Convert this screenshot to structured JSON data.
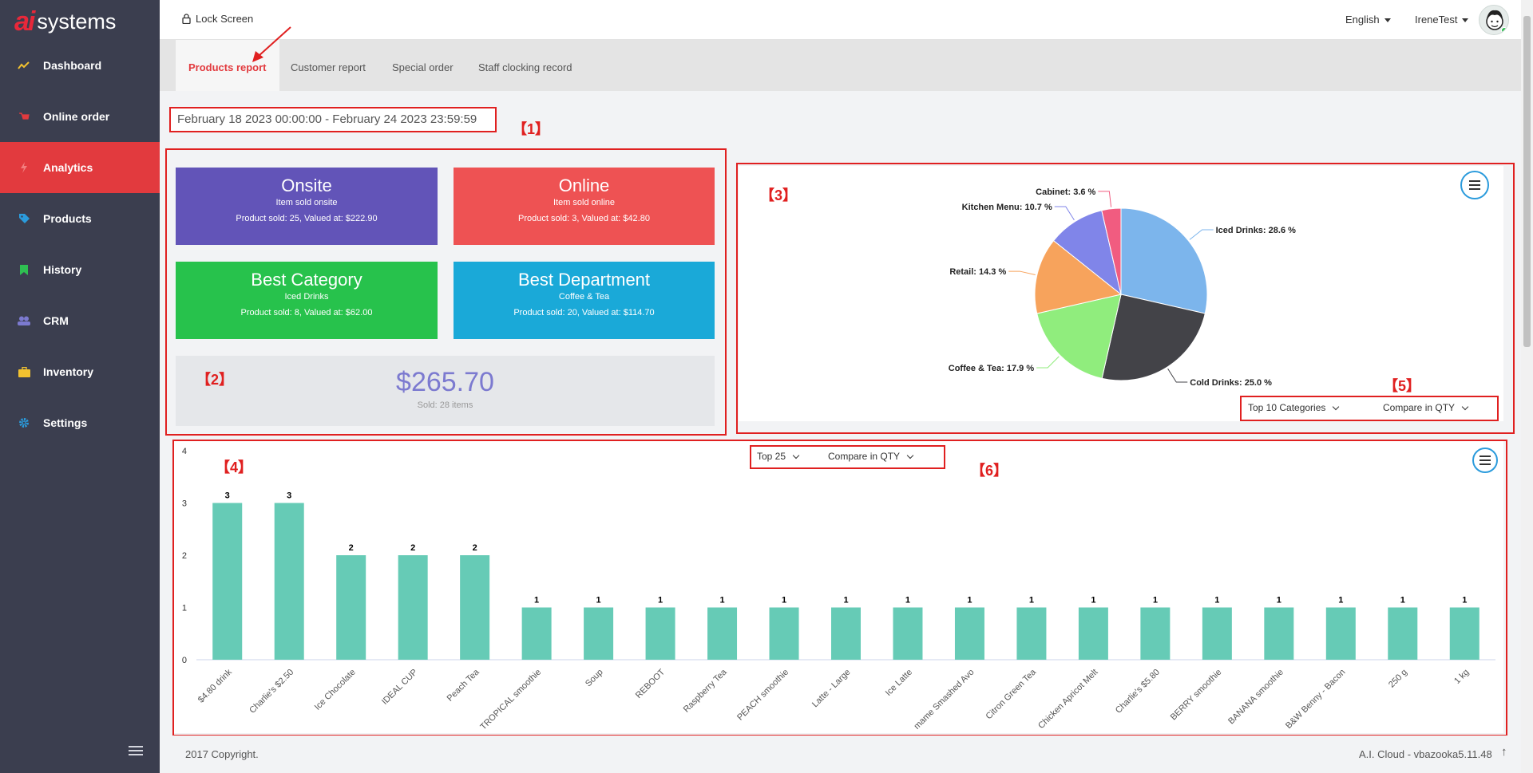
{
  "sidebar": {
    "logo_mark": "ai",
    "logo_text": "systems",
    "items": [
      {
        "label": "Dashboard",
        "icon": "chart-line-icon",
        "color": "#f2c230"
      },
      {
        "label": "Online order",
        "icon": "cart-icon",
        "color": "#e23a3e"
      },
      {
        "label": "Analytics",
        "icon": "bolt-icon",
        "color": "#f27e7e",
        "active": true
      },
      {
        "label": "Products",
        "icon": "tag-icon",
        "color": "#2b9bdc"
      },
      {
        "label": "History",
        "icon": "bookmark-icon",
        "color": "#2fbf52"
      },
      {
        "label": "CRM",
        "icon": "users-icon",
        "color": "#7c7ad0"
      },
      {
        "label": "Inventory",
        "icon": "briefcase-icon",
        "color": "#f2c230"
      },
      {
        "label": "Settings",
        "icon": "gear-icon",
        "color": "#2b9bdc"
      }
    ]
  },
  "topbar": {
    "lock_label": "Lock Screen",
    "language": "English",
    "user": "IreneTest"
  },
  "tabs": [
    "Products report",
    "Customer report",
    "Special order",
    "Staff clocking record"
  ],
  "date_range": "February 18 2023 00:00:00 - February 24 2023 23:59:59",
  "annotations": [
    "【1】",
    "【2】",
    "【3】",
    "【4】",
    "【5】",
    "【6】"
  ],
  "cards": [
    {
      "title": "Onsite",
      "subtitle": "Item sold onsite",
      "value": "Product sold: 25, Valued at: $222.90",
      "color": "#6254b8"
    },
    {
      "title": "Online",
      "subtitle": "Item sold online",
      "value": "Product sold: 3, Valued at: $42.80",
      "color": "#ee5253"
    },
    {
      "title": "Best Category",
      "subtitle": "Iced Drinks",
      "value": "Product sold: 8, Valued at: $62.00",
      "color": "#27c24c"
    },
    {
      "title": "Best Department",
      "subtitle": "Coffee & Tea",
      "value": "Product sold: 20, Valued at: $114.70",
      "color": "#1aa9d8"
    }
  ],
  "total": {
    "amount": "$265.70",
    "sold": "Sold: 28 items"
  },
  "pie_controls": {
    "top": "Top 10 Categories",
    "compare": "Compare in QTY"
  },
  "bar_controls": {
    "top": "Top 25",
    "compare": "Compare in QTY"
  },
  "footer": {
    "copyright": "2017 Copyright.",
    "version": "A.I. Cloud - vbazooka5.11.48"
  },
  "chart_data": [
    {
      "type": "pie",
      "slices": [
        {
          "label": "Iced Drinks: 28.6 %",
          "value": 28.6,
          "color": "#7cb5ec"
        },
        {
          "label": "Cold Drinks: 25.0 %",
          "value": 25.0,
          "color": "#434348"
        },
        {
          "label": "Coffee & Tea: 17.9 %",
          "value": 17.9,
          "color": "#90ed7d"
        },
        {
          "label": "Retail: 14.3 %",
          "value": 14.3,
          "color": "#f7a35c"
        },
        {
          "label": "Kitchen Menu: 10.7 %",
          "value": 10.7,
          "color": "#8085e9"
        },
        {
          "label": "Cabinet: 3.6 %",
          "value": 3.6,
          "color": "#f15c80"
        }
      ]
    },
    {
      "type": "bar",
      "ylim": [
        0,
        4
      ],
      "yticks": [
        0,
        1,
        2,
        3,
        4
      ],
      "color": "#66cbb6",
      "categories": [
        "$4.80 drink",
        "Charlie's $2.50",
        "Ice Chocolate",
        "IDEAL CUP",
        "Peach Tea",
        "TROPICAL smoothie",
        "Soup",
        "REBOOT",
        "Raspberry Tea",
        "PEACH smoothie",
        "Latte - Large",
        "Ice Latte",
        "mame Smashed Avo",
        "Citron Green Tea",
        "Chicken Apricot Melt",
        "Charlie's $5.80",
        "BERRY smoothie",
        "BANANA smoothie",
        "B&W Benny - Bacon",
        "250 g",
        "1 kg"
      ],
      "values": [
        3,
        3,
        2,
        2,
        2,
        1,
        1,
        1,
        1,
        1,
        1,
        1,
        1,
        1,
        1,
        1,
        1,
        1,
        1,
        1,
        1
      ]
    }
  ]
}
